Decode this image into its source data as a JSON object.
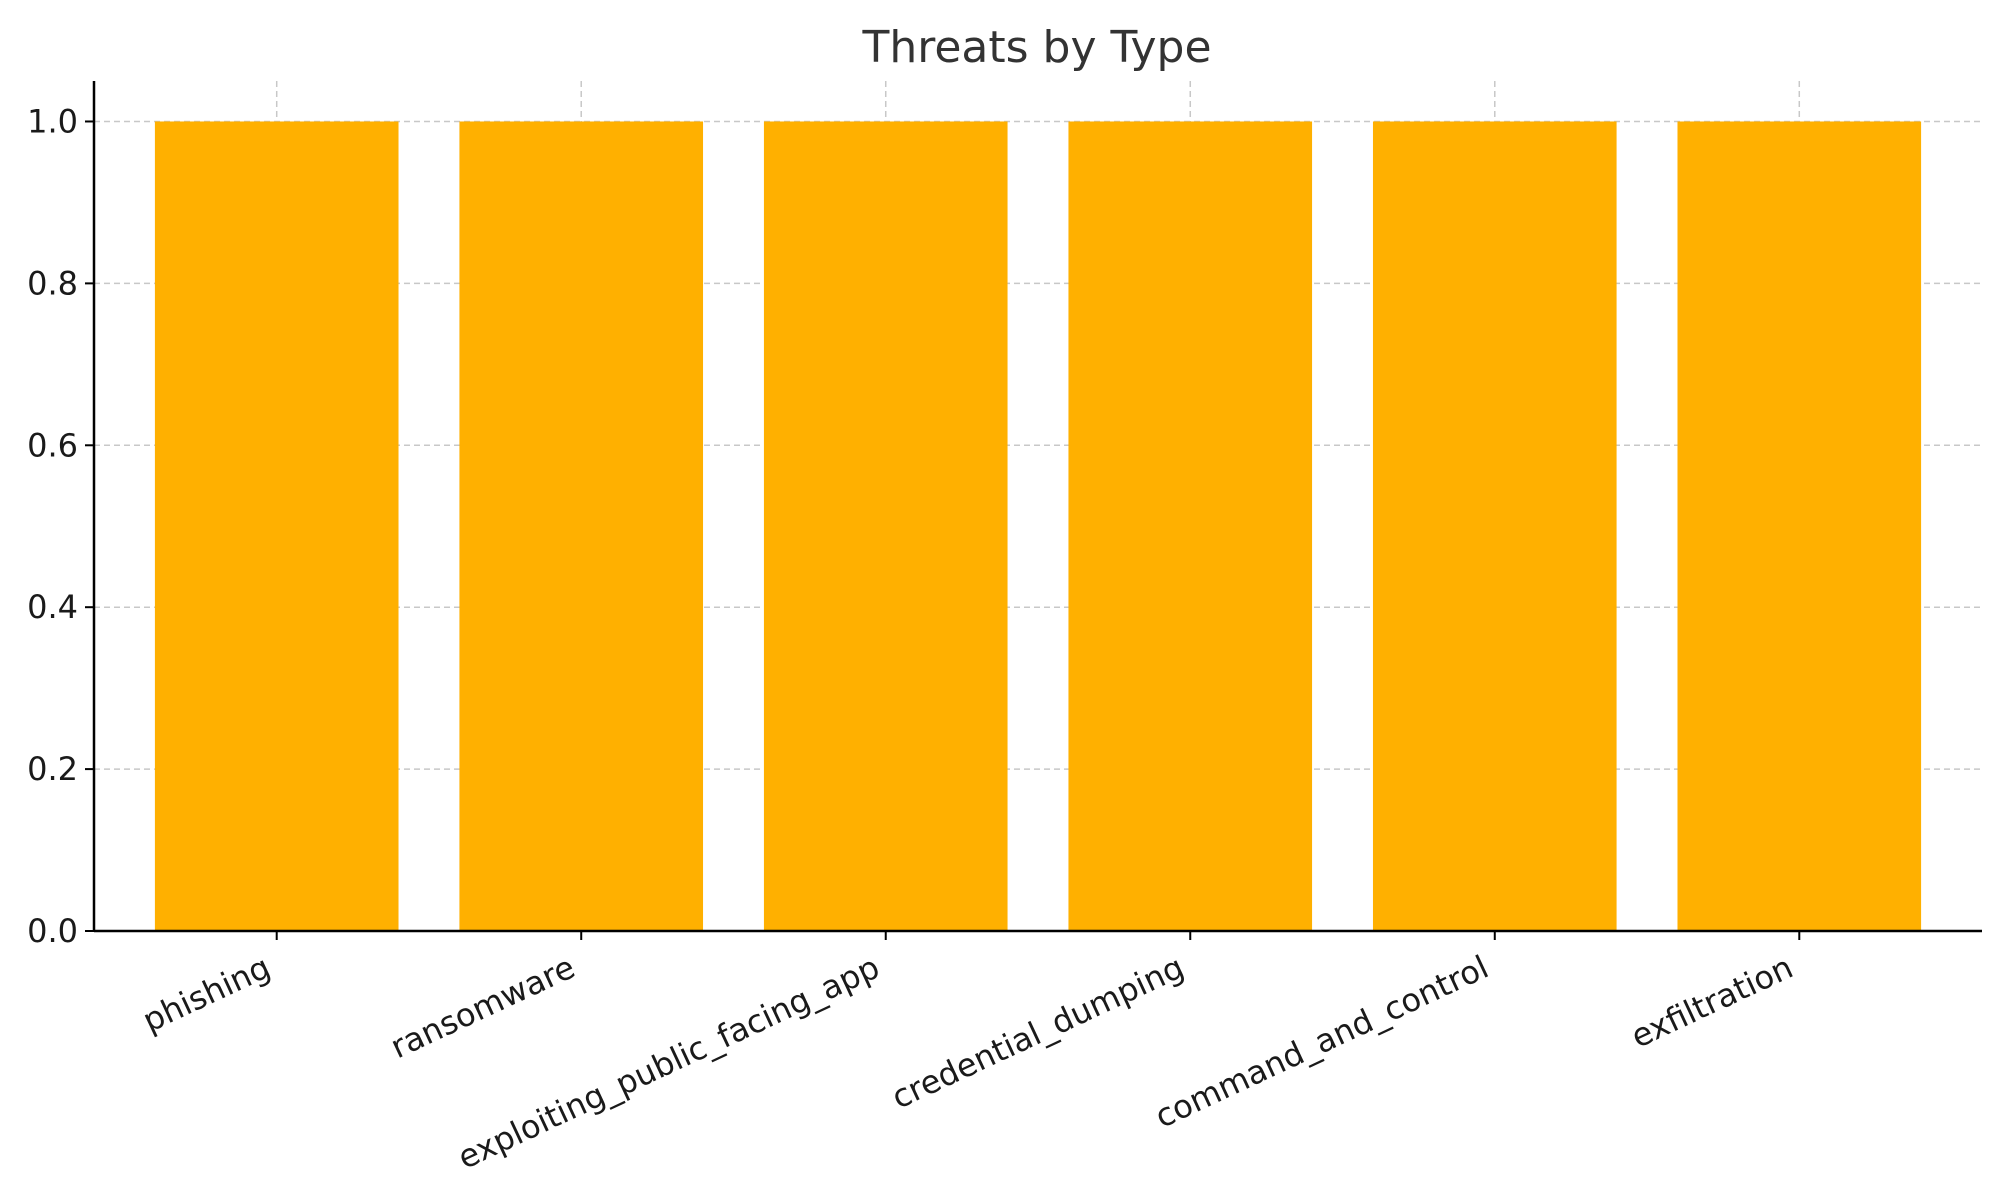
{
  "chart_data": {
    "type": "bar",
    "title": "Threats by Type",
    "xlabel": "",
    "ylabel": "",
    "categories": [
      "phishing",
      "ransomware",
      "exploiting_public_facing_app",
      "credential_dumping",
      "command_and_control",
      "exfiltration"
    ],
    "values": [
      1,
      1,
      1,
      1,
      1,
      1
    ],
    "ylim": [
      0,
      1.05
    ],
    "yticks": [
      0.0,
      0.2,
      0.4,
      0.6,
      0.8,
      1.0
    ],
    "ytick_labels": [
      "0.0",
      "0.2",
      "0.4",
      "0.6",
      "0.8",
      "1.0"
    ],
    "grid": true,
    "bar_color": "#FFB000",
    "category_label_rotation_deg": -25
  }
}
